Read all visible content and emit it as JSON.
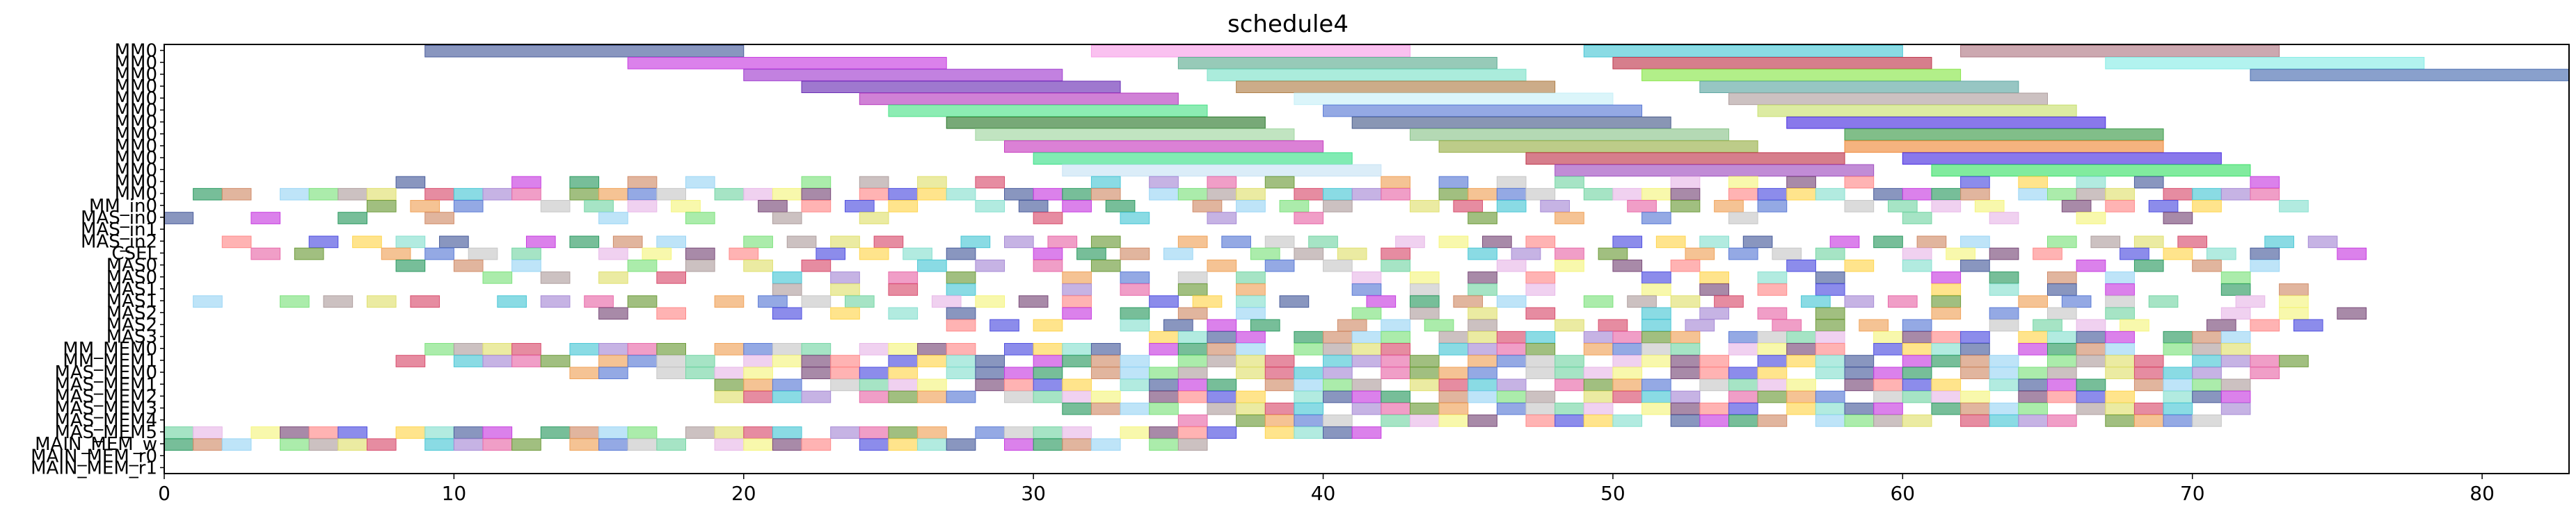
{
  "chart_data": {
    "type": "gantt",
    "title": "schedule4",
    "xlim": [
      0,
      83
    ],
    "x_ticks": [
      0,
      10,
      20,
      30,
      40,
      50,
      60,
      70,
      80
    ],
    "grid": false,
    "rows": [
      "MM0",
      "MM0",
      "MM0",
      "MM0",
      "MM0",
      "MM0",
      "MM0",
      "MM0",
      "MM0",
      "MM0",
      "MM0",
      "MM0",
      "MM0",
      "MM_in0",
      "MAS_in0",
      "MAS_in1",
      "MAS_in2",
      "CSEL",
      "MAS0",
      "MAS0",
      "MAS1",
      "MAS1",
      "MAS2",
      "MAS2",
      "MAS3",
      "MM_MEM0",
      "MM_MEM1",
      "MAS_MEM0",
      "MAS_MEM1",
      "MAS_MEM2",
      "MAS_MEM3",
      "MAS_MEM4",
      "MAS_MEM5",
      "MAIN_MEM_w",
      "MAIN_MEM_r0",
      "MAIN_MEM_r1"
    ],
    "palette": [
      "#4a5d9c",
      "#c73ee0",
      "#2e9b63",
      "#d18d6a",
      "#9bd6f5",
      "#7ee27e",
      "#b0a0a0",
      "#e0e070",
      "#d84f6f",
      "#4bc7d6",
      "#a78bd6",
      "#e86aa9",
      "#6f9c3c",
      "#f0a35a",
      "#5b7bd6",
      "#c7c7c7",
      "#77d6a6",
      "#e8b8e8",
      "#f5f57f",
      "#7a4b7a",
      "#ff8a8a",
      "#4f4fe0",
      "#ffd54f",
      "#88e0d0"
    ],
    "intervals": [
      {
        "row": 0,
        "start": 9,
        "end": 20,
        "color": "#4a5d9c"
      },
      {
        "row": 0,
        "start": 32,
        "end": 43,
        "color": "#f7a0e8"
      },
      {
        "row": 0,
        "start": 49,
        "end": 60,
        "color": "#4bc7d6"
      },
      {
        "row": 0,
        "start": 62,
        "end": 73,
        "color": "#b07a86"
      },
      {
        "row": 1,
        "start": 16,
        "end": 27,
        "color": "#c73ee0"
      },
      {
        "row": 1,
        "start": 35,
        "end": 46,
        "color": "#5fae92"
      },
      {
        "row": 1,
        "start": 50,
        "end": 61,
        "color": "#c0394e"
      },
      {
        "row": 1,
        "start": 67,
        "end": 78,
        "color": "#88ece6"
      },
      {
        "row": 2,
        "start": 20,
        "end": 31,
        "color": "#a13ed0"
      },
      {
        "row": 2,
        "start": 36,
        "end": 47,
        "color": "#7ee2c9"
      },
      {
        "row": 2,
        "start": 51,
        "end": 62,
        "color": "#89e64a"
      },
      {
        "row": 2,
        "start": 72,
        "end": 83,
        "color": "#4a6db0"
      },
      {
        "row": 3,
        "start": 22,
        "end": 33,
        "color": "#6b2fb6"
      },
      {
        "row": 3,
        "start": 37,
        "end": 48,
        "color": "#b0804a"
      },
      {
        "row": 3,
        "start": 53,
        "end": 64,
        "color": "#5fa8a3"
      },
      {
        "row": 4,
        "start": 24,
        "end": 35,
        "color": "#b73ec0"
      },
      {
        "row": 4,
        "start": 39,
        "end": 50,
        "color": "#c7f0f8"
      },
      {
        "row": 4,
        "start": 54,
        "end": 65,
        "color": "#b0a0a0"
      },
      {
        "row": 5,
        "start": 25,
        "end": 36,
        "color": "#4ee28a"
      },
      {
        "row": 5,
        "start": 40,
        "end": 51,
        "color": "#5b7bd6"
      },
      {
        "row": 5,
        "start": 55,
        "end": 66,
        "color": "#c9e070"
      },
      {
        "row": 6,
        "start": 27,
        "end": 38,
        "color": "#2e7b2e"
      },
      {
        "row": 6,
        "start": 41,
        "end": 52,
        "color": "#4a5d8c"
      },
      {
        "row": 6,
        "start": 56,
        "end": 67,
        "color": "#4a2fe0"
      },
      {
        "row": 7,
        "start": 28,
        "end": 39,
        "color": "#a0d6a0"
      },
      {
        "row": 7,
        "start": 43,
        "end": 54,
        "color": "#8cc58c"
      },
      {
        "row": 7,
        "start": 58,
        "end": 69,
        "color": "#3e9b4a"
      },
      {
        "row": 8,
        "start": 29,
        "end": 40,
        "color": "#c73ec0"
      },
      {
        "row": 8,
        "start": 44,
        "end": 55,
        "color": "#9ab04a"
      },
      {
        "row": 8,
        "start": 58,
        "end": 69,
        "color": "#f08a3a"
      },
      {
        "row": 9,
        "start": 30,
        "end": 41,
        "color": "#3ee08a"
      },
      {
        "row": 9,
        "start": 47,
        "end": 58,
        "color": "#c0394e"
      },
      {
        "row": 9,
        "start": 60,
        "end": 71,
        "color": "#4a2fe0"
      },
      {
        "row": 10,
        "start": 31,
        "end": 42,
        "color": "#c7e3f5"
      },
      {
        "row": 10,
        "start": 48,
        "end": 59,
        "color": "#a04ec0"
      },
      {
        "row": 10,
        "start": 61,
        "end": 72,
        "color": "#3ee06a"
      }
    ],
    "dense_rows": [
      {
        "row": 11,
        "start": 8,
        "end": 73,
        "step": 2
      },
      {
        "row": 12,
        "start": 1,
        "end": 74,
        "step": 1
      },
      {
        "row": 13,
        "start": 7,
        "end": 74,
        "step": 1.5
      },
      {
        "row": 14,
        "start": 0,
        "end": 75,
        "step": 3
      },
      {
        "row": 16,
        "start": 2,
        "end": 76,
        "step": 1.5
      },
      {
        "row": 17,
        "start": 3,
        "end": 76,
        "step": 1.5
      },
      {
        "row": 18,
        "start": 8,
        "end": 73,
        "step": 2
      },
      {
        "row": 19,
        "start": 11,
        "end": 72,
        "step": 2
      },
      {
        "row": 20,
        "start": 19,
        "end": 74,
        "step": 2
      },
      {
        "row": 21,
        "start": 1,
        "end": 74,
        "step": 1.5
      },
      {
        "row": 22,
        "start": 15,
        "end": 77,
        "step": 2
      },
      {
        "row": 23,
        "start": 27,
        "end": 75,
        "step": 1.5
      },
      {
        "row": 24,
        "start": 34,
        "end": 72,
        "step": 1
      },
      {
        "row": 25,
        "start": 8,
        "end": 72,
        "step": 1
      },
      {
        "row": 26,
        "start": 8,
        "end": 75,
        "step": 1
      },
      {
        "row": 27,
        "start": 14,
        "end": 73,
        "step": 1
      },
      {
        "row": 28,
        "start": 19,
        "end": 72,
        "step": 1
      },
      {
        "row": 29,
        "start": 19,
        "end": 72,
        "step": 1
      },
      {
        "row": 30,
        "start": 30,
        "end": 72,
        "step": 1
      },
      {
        "row": 31,
        "start": 35,
        "end": 72,
        "step": 1
      },
      {
        "row": 32,
        "start": 0,
        "end": 42,
        "step": 1
      },
      {
        "row": 33,
        "start": 0,
        "end": 36,
        "step": 1
      }
    ]
  }
}
